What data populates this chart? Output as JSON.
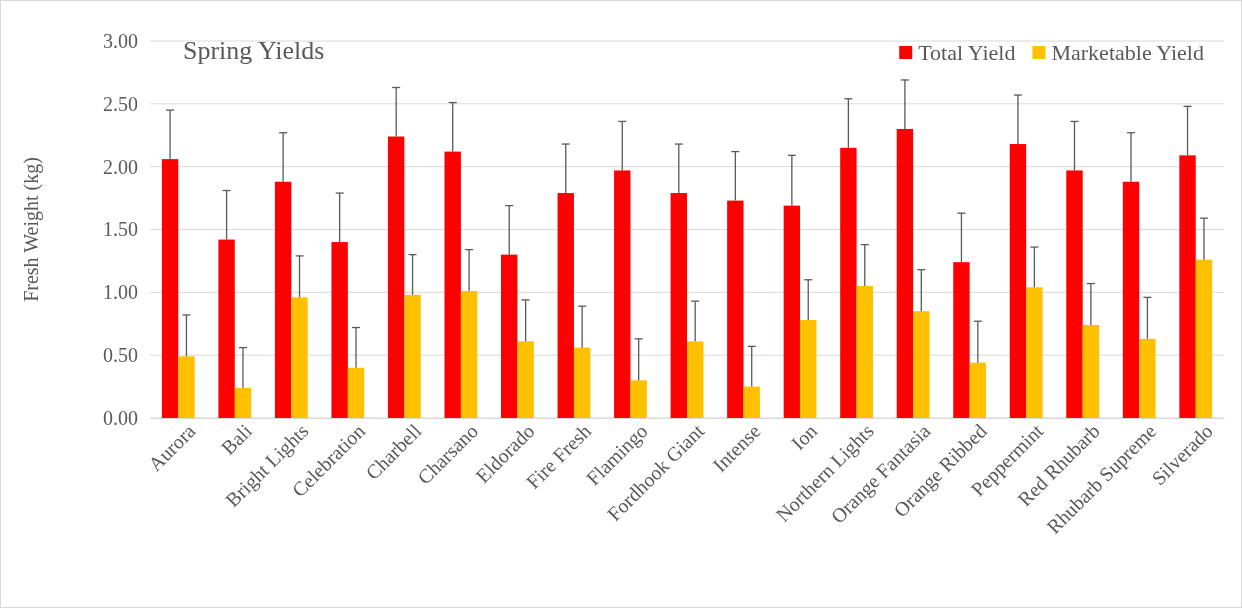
{
  "chart_data": {
    "type": "bar",
    "title": "Spring Yields",
    "ylabel": "Fresh Weight (kg)",
    "categories": [
      "Aurora",
      "Bali",
      "Bright Lights",
      "Celebration",
      "Charbell",
      "Charsano",
      "Eldorado",
      "Fire Fresh",
      "Flamingo",
      "Fordhook Giant",
      "Intense",
      "Ion",
      "Northern Lights",
      "Orange Fantasia",
      "Orange Ribbed",
      "Peppermint",
      "Red Rhubarb",
      "Rhubarb Supreme",
      "Silverado"
    ],
    "series": [
      {
        "name": "Total Yield",
        "color": "#ff0000",
        "values": [
          2.06,
          1.42,
          1.88,
          1.4,
          2.24,
          2.12,
          1.3,
          1.79,
          1.97,
          1.79,
          1.73,
          1.69,
          2.15,
          2.3,
          1.24,
          2.18,
          1.97,
          1.88,
          2.09
        ],
        "errors": [
          [
            2.06,
            2.45
          ],
          [
            1.42,
            1.81
          ],
          [
            1.88,
            2.27
          ],
          [
            1.4,
            1.79
          ],
          [
            2.24,
            2.63
          ],
          [
            2.12,
            2.51
          ],
          [
            1.3,
            1.69
          ],
          [
            1.79,
            2.18
          ],
          [
            1.97,
            2.36
          ],
          [
            1.79,
            2.18
          ],
          [
            1.73,
            2.12
          ],
          [
            1.69,
            2.09
          ],
          [
            2.15,
            2.54
          ],
          [
            2.3,
            2.69
          ],
          [
            1.24,
            1.63
          ],
          [
            2.18,
            2.57
          ],
          [
            1.97,
            2.36
          ],
          [
            1.88,
            2.27
          ],
          [
            2.09,
            2.48
          ]
        ]
      },
      {
        "name": "Marketable Yield",
        "color": "#ffc000",
        "values": [
          0.49,
          0.24,
          0.96,
          0.4,
          0.98,
          1.01,
          0.61,
          0.56,
          0.3,
          0.61,
          0.25,
          0.78,
          1.05,
          0.85,
          0.44,
          1.04,
          0.74,
          0.63,
          1.26
        ],
        "errors": [
          [
            0.49,
            0.82
          ],
          [
            0.24,
            0.56
          ],
          [
            0.96,
            1.29
          ],
          [
            0.4,
            0.72
          ],
          [
            0.98,
            1.3
          ],
          [
            1.01,
            1.34
          ],
          [
            0.61,
            0.94
          ],
          [
            0.56,
            0.89
          ],
          [
            0.3,
            0.63
          ],
          [
            0.61,
            0.93
          ],
          [
            0.25,
            0.57
          ],
          [
            0.78,
            1.1
          ],
          [
            1.05,
            1.38
          ],
          [
            0.85,
            1.18
          ],
          [
            0.44,
            0.77
          ],
          [
            1.04,
            1.36
          ],
          [
            0.74,
            1.07
          ],
          [
            0.63,
            0.96
          ],
          [
            1.26,
            1.59
          ]
        ]
      }
    ],
    "ylim": [
      0,
      3
    ],
    "yticks": [
      {
        "value": 0,
        "label": "0.00"
      },
      {
        "value": 0.5,
        "label": "0.50"
      },
      {
        "value": 1,
        "label": "1.00"
      },
      {
        "value": 1.5,
        "label": "1.50"
      },
      {
        "value": 2,
        "label": "2.00"
      },
      {
        "value": 2.5,
        "label": "2.50"
      },
      {
        "value": 3,
        "label": "3.00"
      }
    ],
    "grid": "y",
    "legend": "top right"
  }
}
